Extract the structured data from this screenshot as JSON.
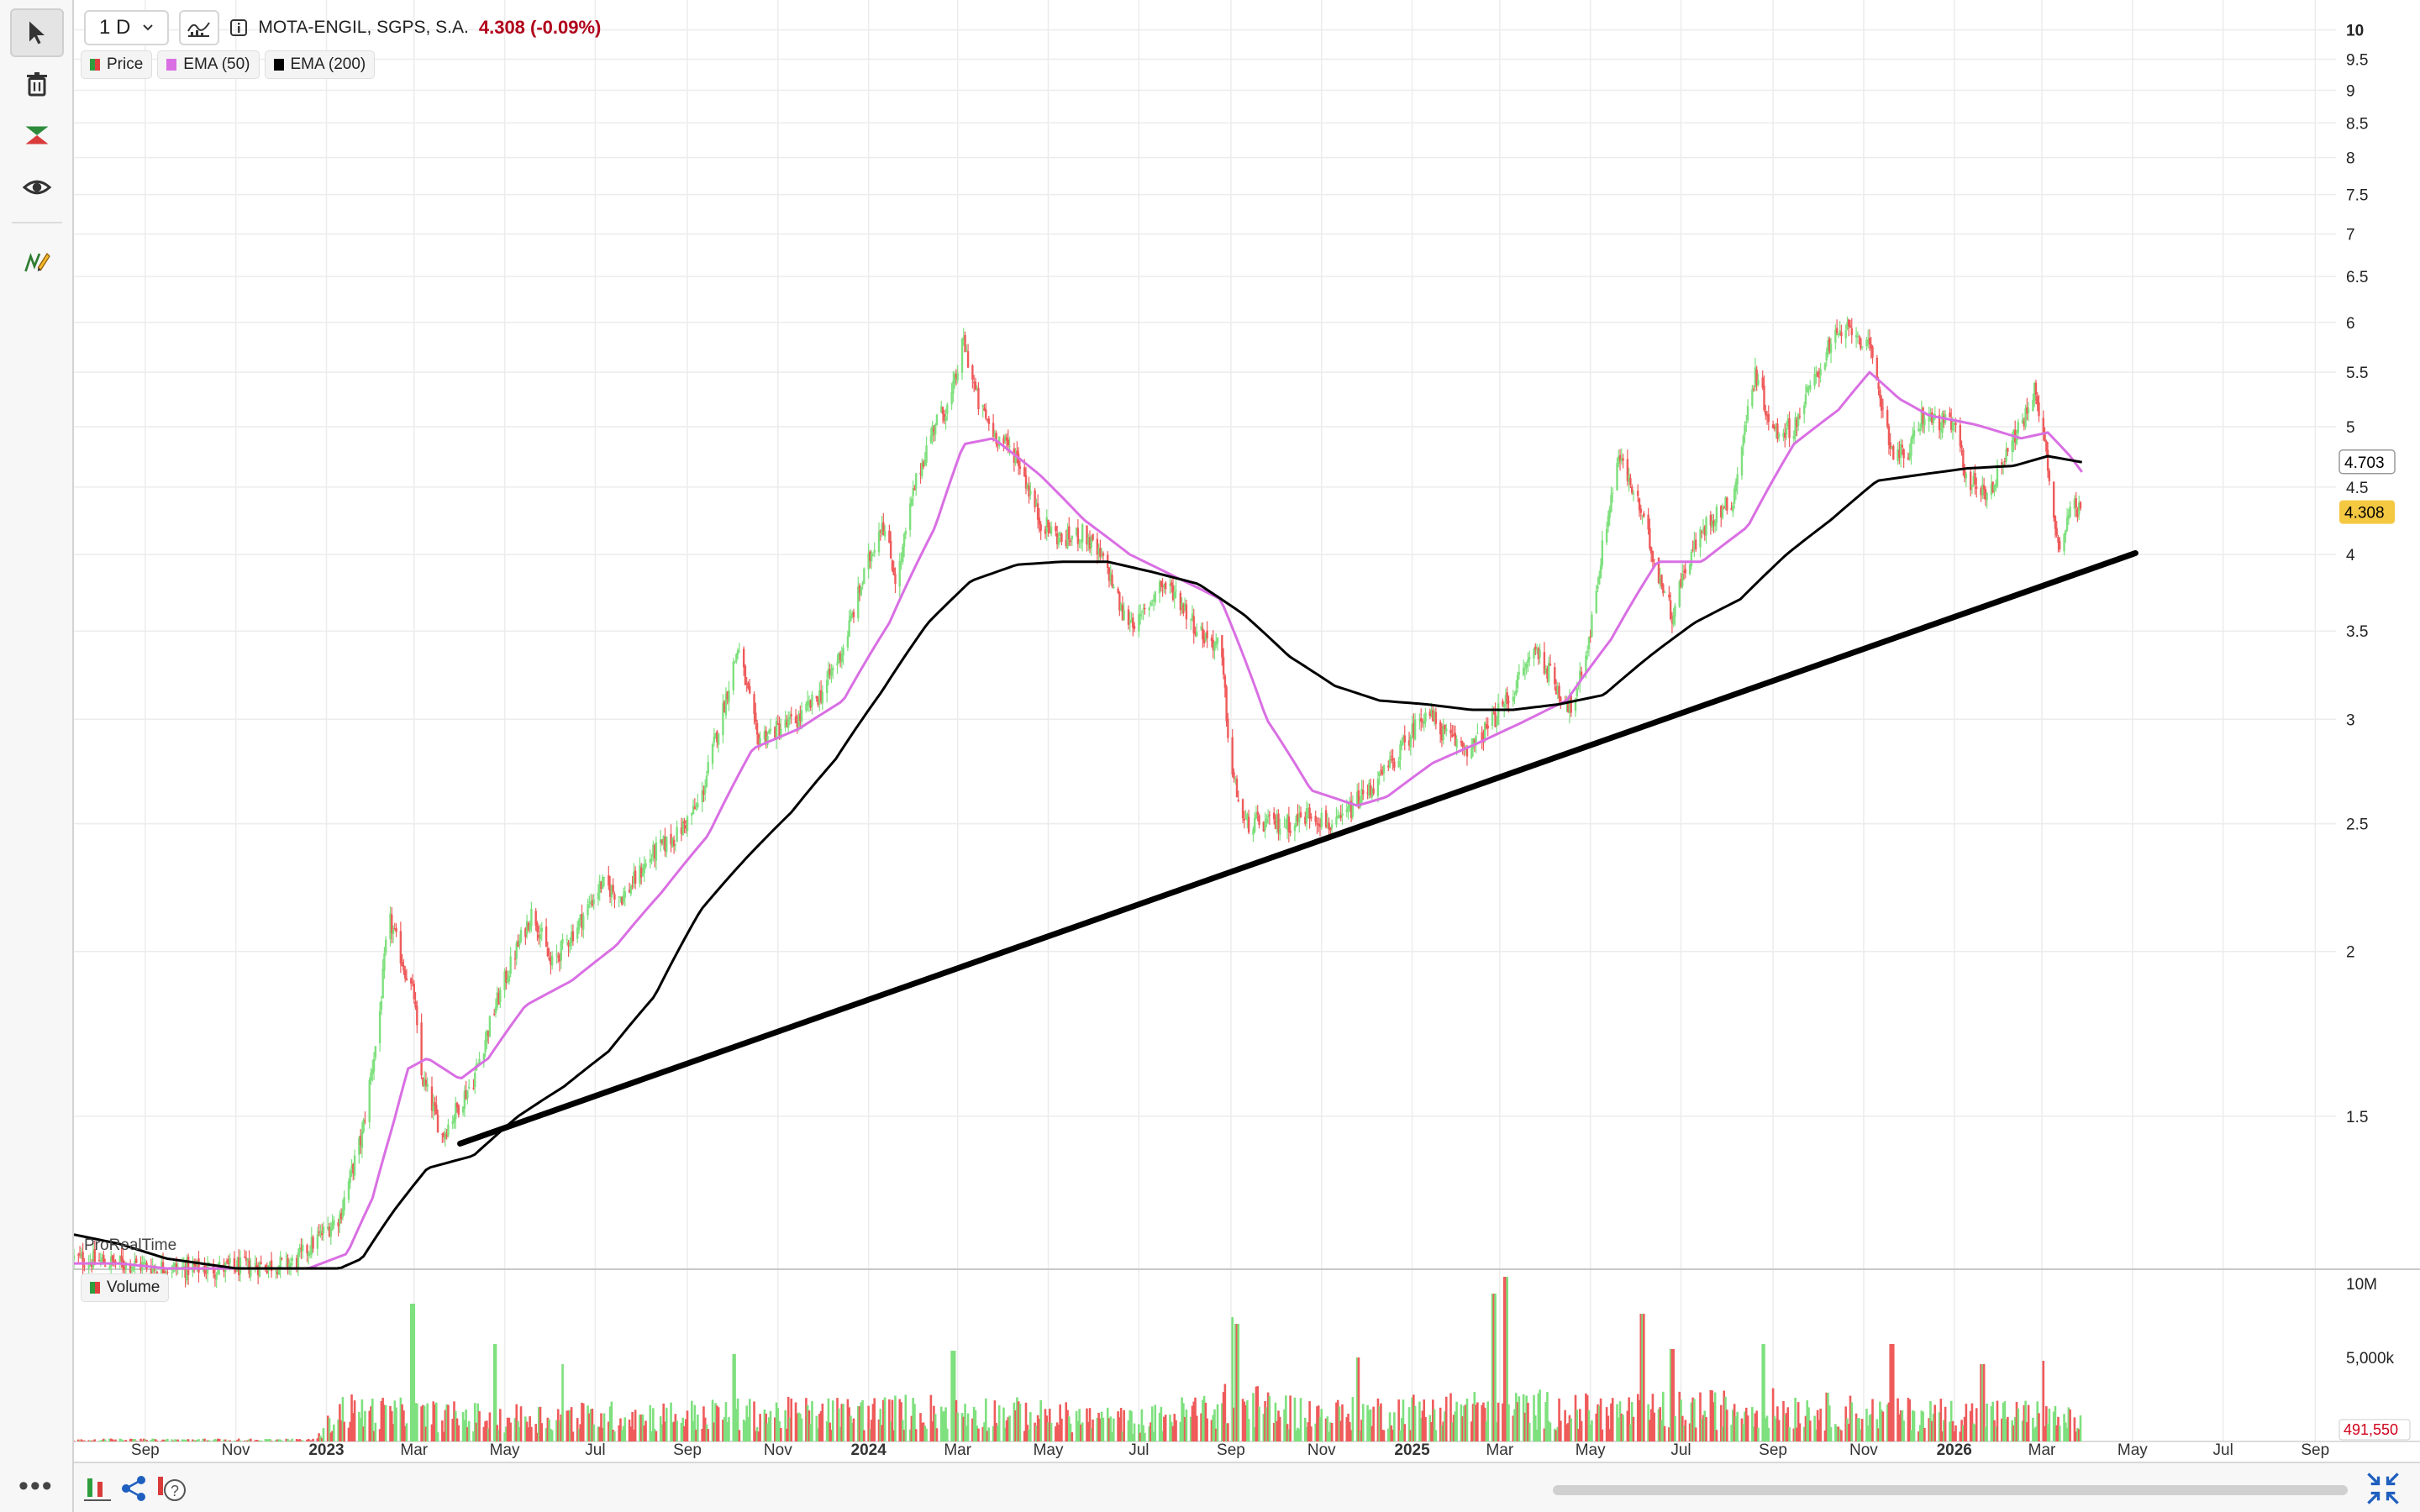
{
  "toolbar": {
    "tools": [
      {
        "name": "cursor-icon",
        "active": true
      },
      {
        "name": "trash-icon",
        "active": false
      },
      {
        "name": "zigzag-pattern-icon",
        "active": false
      },
      {
        "name": "eye-icon",
        "active": false
      },
      {
        "name": "drawing-pencil-icon",
        "active": false
      }
    ],
    "more_label": "•••"
  },
  "header": {
    "interval": "1 D",
    "info_icon": "info-icon",
    "symbol_name": "MOTA-ENGIL, SGPS, S.A.",
    "price_change": "4.308 (-0.09%)",
    "price_change_color": "#b0001a"
  },
  "legend": {
    "price_label": "Price",
    "ema50_label": "EMA (50)",
    "ema200_label": "EMA (200)",
    "volume_label": "Volume"
  },
  "watermark": "ProRealTime",
  "colors": {
    "up": "#7ee07e",
    "down": "#ef5a5a",
    "ema50": "#d96fe3",
    "ema200": "#000000",
    "trendline": "#000000",
    "last_price_badge": "#f5c842",
    "last_volume_text": "#d0021b"
  },
  "chart_data": [
    {
      "type": "line",
      "scale": "log",
      "ylim": [
        1.15,
        10.2
      ],
      "xlim": [
        "2022-07-15",
        "2026-09-15"
      ],
      "y_ticks": [
        1.5,
        2,
        2.5,
        3,
        3.5,
        4,
        4.5,
        5,
        5.5,
        6,
        6.5,
        7,
        7.5,
        8,
        8.5,
        9,
        9.5,
        10
      ],
      "y_tick_labels": [
        "1.5",
        "2",
        "2.5",
        "3",
        "3.5",
        "4",
        "4.5",
        "5",
        "5.5",
        "6",
        "6.5",
        "7",
        "7.5",
        "8",
        "8.5",
        "9",
        "9.5",
        "10"
      ],
      "x_ticks": [
        {
          "label": "Sep",
          "date": "2022-09-01"
        },
        {
          "label": "Nov",
          "date": "2022-11-01"
        },
        {
          "label": "2023",
          "date": "2023-01-01",
          "bold": true
        },
        {
          "label": "Mar",
          "date": "2023-03-01"
        },
        {
          "label": "May",
          "date": "2023-05-01"
        },
        {
          "label": "Jul",
          "date": "2023-07-01"
        },
        {
          "label": "Sep",
          "date": "2023-09-01"
        },
        {
          "label": "Nov",
          "date": "2023-11-01"
        },
        {
          "label": "2024",
          "date": "2024-01-01",
          "bold": true
        },
        {
          "label": "Mar",
          "date": "2024-03-01"
        },
        {
          "label": "May",
          "date": "2024-05-01"
        },
        {
          "label": "Jul",
          "date": "2024-07-01"
        },
        {
          "label": "Sep",
          "date": "2024-09-01"
        },
        {
          "label": "Nov",
          "date": "2024-11-01"
        },
        {
          "label": "2025",
          "date": "2025-01-01",
          "bold": true
        },
        {
          "label": "Mar",
          "date": "2025-03-01"
        },
        {
          "label": "May",
          "date": "2025-05-01"
        },
        {
          "label": "Jul",
          "date": "2025-07-01"
        },
        {
          "label": "Sep",
          "date": "2025-09-01"
        },
        {
          "label": "Nov",
          "date": "2025-11-01"
        },
        {
          "label": "2026",
          "date": "2026-01-01",
          "bold": true
        },
        {
          "label": "Mar",
          "date": "2026-03-01"
        },
        {
          "label": "May",
          "date": "2026-05-01"
        },
        {
          "label": "Jul",
          "date": "2026-07-01"
        },
        {
          "label": "Sep",
          "date": "2026-09-01"
        }
      ],
      "price_path": [
        [
          "2022-07-15",
          1.17
        ],
        [
          "2022-08-15",
          1.16
        ],
        [
          "2022-09-20",
          1.15
        ],
        [
          "2022-10-20",
          1.15
        ],
        [
          "2022-12-10",
          1.16
        ],
        [
          "2023-01-10",
          1.26
        ],
        [
          "2023-01-25",
          1.45
        ],
        [
          "2023-02-05",
          1.75
        ],
        [
          "2023-02-12",
          2.12
        ],
        [
          "2023-02-22",
          1.95
        ],
        [
          "2023-03-01",
          1.85
        ],
        [
          "2023-03-05",
          1.62
        ],
        [
          "2023-03-20",
          1.45
        ],
        [
          "2023-04-10",
          1.6
        ],
        [
          "2023-04-25",
          1.82
        ],
        [
          "2023-05-10",
          2.02
        ],
        [
          "2023-05-20",
          2.15
        ],
        [
          "2023-06-01",
          1.95
        ],
        [
          "2023-06-20",
          2.1
        ],
        [
          "2023-07-05",
          2.25
        ],
        [
          "2023-07-20",
          2.2
        ],
        [
          "2023-08-10",
          2.38
        ],
        [
          "2023-08-25",
          2.45
        ],
        [
          "2023-09-10",
          2.6
        ],
        [
          "2023-09-25",
          3.05
        ],
        [
          "2023-10-05",
          3.4
        ],
        [
          "2023-10-18",
          2.9
        ],
        [
          "2023-11-01",
          2.95
        ],
        [
          "2023-11-15",
          3.0
        ],
        [
          "2023-12-01",
          3.15
        ],
        [
          "2023-12-15",
          3.4
        ],
        [
          "2024-01-01",
          3.95
        ],
        [
          "2024-01-10",
          4.25
        ],
        [
          "2024-01-20",
          3.8
        ],
        [
          "2024-02-01",
          4.5
        ],
        [
          "2024-02-15",
          5.05
        ],
        [
          "2024-02-25",
          5.2
        ],
        [
          "2024-03-05",
          5.8
        ],
        [
          "2024-03-15",
          5.2
        ],
        [
          "2024-03-25",
          4.95
        ],
        [
          "2024-04-10",
          4.75
        ],
        [
          "2024-04-25",
          4.25
        ],
        [
          "2024-05-10",
          4.1
        ],
        [
          "2024-05-25",
          4.15
        ],
        [
          "2024-06-10",
          3.9
        ],
        [
          "2024-06-20",
          3.6
        ],
        [
          "2024-07-01",
          3.55
        ],
        [
          "2024-07-15",
          3.8
        ],
        [
          "2024-07-25",
          3.75
        ],
        [
          "2024-08-10",
          3.5
        ],
        [
          "2024-08-25",
          3.4
        ],
        [
          "2024-09-01",
          2.75
        ],
        [
          "2024-09-10",
          2.5
        ],
        [
          "2024-09-25",
          2.5
        ],
        [
          "2024-10-10",
          2.5
        ],
        [
          "2024-10-25",
          2.55
        ],
        [
          "2024-11-10",
          2.48
        ],
        [
          "2024-11-25",
          2.6
        ],
        [
          "2024-12-10",
          2.7
        ],
        [
          "2024-12-25",
          2.85
        ],
        [
          "2025-01-10",
          3.05
        ],
        [
          "2025-01-25",
          2.9
        ],
        [
          "2025-02-10",
          2.85
        ],
        [
          "2025-02-25",
          3.0
        ],
        [
          "2025-03-10",
          3.15
        ],
        [
          "2025-03-25",
          3.4
        ],
        [
          "2025-04-10",
          3.15
        ],
        [
          "2025-04-20",
          3.05
        ],
        [
          "2025-05-01",
          3.5
        ],
        [
          "2025-05-10",
          4.1
        ],
        [
          "2025-05-20",
          4.75
        ],
        [
          "2025-06-01",
          4.4
        ],
        [
          "2025-06-15",
          3.9
        ],
        [
          "2025-06-25",
          3.6
        ],
        [
          "2025-07-05",
          3.95
        ],
        [
          "2025-07-20",
          4.25
        ],
        [
          "2025-08-05",
          4.4
        ],
        [
          "2025-08-20",
          5.5
        ],
        [
          "2025-09-01",
          4.95
        ],
        [
          "2025-09-15",
          5.0
        ],
        [
          "2025-10-01",
          5.5
        ],
        [
          "2025-10-10",
          5.8
        ],
        [
          "2025-10-25",
          5.95
        ],
        [
          "2025-11-05",
          5.7
        ],
        [
          "2025-11-20",
          4.8
        ],
        [
          "2025-12-01",
          4.75
        ],
        [
          "2025-12-10",
          5.1
        ],
        [
          "2025-12-20",
          5.05
        ],
        [
          "2026-01-01",
          5.0
        ],
        [
          "2026-01-10",
          4.55
        ],
        [
          "2026-01-25",
          4.45
        ],
        [
          "2026-02-05",
          4.8
        ],
        [
          "2026-02-15",
          5.0
        ],
        [
          "2026-02-25",
          5.35
        ],
        [
          "2026-03-05",
          4.65
        ],
        [
          "2026-03-12",
          4.05
        ],
        [
          "2026-03-20",
          4.35
        ],
        [
          "2026-03-28",
          4.31
        ]
      ],
      "ema50": [
        [
          "2022-07-15",
          1.16
        ],
        [
          "2022-08-15",
          1.16
        ],
        [
          "2022-09-15",
          1.15
        ],
        [
          "2022-11-01",
          1.15
        ],
        [
          "2022-12-20",
          1.15
        ],
        [
          "2023-01-15",
          1.18
        ],
        [
          "2023-02-01",
          1.3
        ],
        [
          "2023-02-15",
          1.48
        ],
        [
          "2023-02-25",
          1.63
        ],
        [
          "2023-03-10",
          1.66
        ],
        [
          "2023-04-01",
          1.6
        ],
        [
          "2023-04-20",
          1.66
        ],
        [
          "2023-05-15",
          1.82
        ],
        [
          "2023-06-15",
          1.9
        ],
        [
          "2023-07-15",
          2.02
        ],
        [
          "2023-08-15",
          2.22
        ],
        [
          "2023-09-15",
          2.45
        ],
        [
          "2023-10-15",
          2.85
        ],
        [
          "2023-11-15",
          2.95
        ],
        [
          "2023-12-15",
          3.1
        ],
        [
          "2024-01-15",
          3.55
        ],
        [
          "2024-02-15",
          4.2
        ],
        [
          "2024-03-05",
          4.85
        ],
        [
          "2024-03-25",
          4.9
        ],
        [
          "2024-04-25",
          4.6
        ],
        [
          "2024-05-25",
          4.25
        ],
        [
          "2024-06-25",
          4.0
        ],
        [
          "2024-07-25",
          3.85
        ],
        [
          "2024-08-25",
          3.7
        ],
        [
          "2024-09-25",
          3.0
        ],
        [
          "2024-10-25",
          2.65
        ],
        [
          "2024-11-25",
          2.58
        ],
        [
          "2024-12-15",
          2.62
        ],
        [
          "2025-01-15",
          2.78
        ],
        [
          "2025-02-15",
          2.88
        ],
        [
          "2025-03-15",
          2.98
        ],
        [
          "2025-04-15",
          3.1
        ],
        [
          "2025-05-15",
          3.45
        ],
        [
          "2025-06-15",
          3.95
        ],
        [
          "2025-07-15",
          3.95
        ],
        [
          "2025-08-15",
          4.2
        ],
        [
          "2025-09-15",
          4.85
        ],
        [
          "2025-10-15",
          5.15
        ],
        [
          "2025-11-05",
          5.5
        ],
        [
          "2025-11-25",
          5.25
        ],
        [
          "2025-12-15",
          5.1
        ],
        [
          "2026-01-15",
          5.02
        ],
        [
          "2026-02-15",
          4.9
        ],
        [
          "2026-03-05",
          4.95
        ],
        [
          "2026-03-20",
          4.75
        ],
        [
          "2026-03-28",
          4.62
        ]
      ],
      "ema200": [
        [
          "2022-07-15",
          1.22
        ],
        [
          "2022-08-15",
          1.2
        ],
        [
          "2022-09-15",
          1.17
        ],
        [
          "2022-11-01",
          1.15
        ],
        [
          "2022-12-20",
          1.15
        ],
        [
          "2023-01-10",
          1.15
        ],
        [
          "2023-01-25",
          1.17
        ],
        [
          "2023-02-15",
          1.27
        ],
        [
          "2023-03-10",
          1.37
        ],
        [
          "2023-04-10",
          1.4
        ],
        [
          "2023-05-10",
          1.5
        ],
        [
          "2023-06-10",
          1.58
        ],
        [
          "2023-07-10",
          1.68
        ],
        [
          "2023-08-10",
          1.85
        ],
        [
          "2023-09-10",
          2.15
        ],
        [
          "2023-10-10",
          2.35
        ],
        [
          "2023-11-10",
          2.55
        ],
        [
          "2023-12-10",
          2.8
        ],
        [
          "2024-01-10",
          3.15
        ],
        [
          "2024-02-10",
          3.55
        ],
        [
          "2024-03-10",
          3.82
        ],
        [
          "2024-04-10",
          3.93
        ],
        [
          "2024-05-10",
          3.95
        ],
        [
          "2024-06-10",
          3.95
        ],
        [
          "2024-07-10",
          3.88
        ],
        [
          "2024-08-10",
          3.8
        ],
        [
          "2024-09-10",
          3.6
        ],
        [
          "2024-10-10",
          3.35
        ],
        [
          "2024-11-10",
          3.18
        ],
        [
          "2024-12-10",
          3.1
        ],
        [
          "2025-01-10",
          3.08
        ],
        [
          "2025-02-10",
          3.05
        ],
        [
          "2025-03-10",
          3.05
        ],
        [
          "2025-04-10",
          3.08
        ],
        [
          "2025-05-10",
          3.13
        ],
        [
          "2025-06-10",
          3.35
        ],
        [
          "2025-07-10",
          3.55
        ],
        [
          "2025-08-10",
          3.7
        ],
        [
          "2025-09-10",
          4.0
        ],
        [
          "2025-10-10",
          4.25
        ],
        [
          "2025-11-10",
          4.55
        ],
        [
          "2025-12-10",
          4.6
        ],
        [
          "2026-01-10",
          4.65
        ],
        [
          "2026-02-10",
          4.67
        ],
        [
          "2026-03-05",
          4.75
        ],
        [
          "2026-03-28",
          4.7
        ]
      ],
      "trendline": [
        [
          "2023-04-01",
          1.43
        ],
        [
          "2026-05-03",
          4.01
        ]
      ],
      "last_values": {
        "ema200": "4.703",
        "price": "4.308"
      }
    },
    {
      "type": "bar",
      "name": "Volume",
      "ylim": [
        0,
        10000000
      ],
      "y_tick_labels": [
        "5,000k",
        "10M"
      ],
      "last_value": "491,550",
      "volume_envelope": [
        [
          "2022-07-15",
          0.15
        ],
        [
          "2022-12-25",
          0.15
        ],
        [
          "2023-01-10",
          2.6
        ],
        [
          "2023-03-01",
          2.2
        ],
        [
          "2023-05-01",
          2.0
        ],
        [
          "2023-09-01",
          2.2
        ],
        [
          "2024-01-01",
          2.4
        ],
        [
          "2024-03-01",
          2.6
        ],
        [
          "2024-07-01",
          1.7
        ],
        [
          "2024-09-05",
          3.2
        ],
        [
          "2024-11-01",
          2.2
        ],
        [
          "2025-03-01",
          2.9
        ],
        [
          "2025-05-01",
          2.5
        ],
        [
          "2025-09-01",
          2.8
        ],
        [
          "2025-11-01",
          2.4
        ],
        [
          "2026-03-01",
          2.2
        ],
        [
          "2026-03-28",
          1.6
        ]
      ],
      "volume_spikes": [
        [
          "2023-02-28",
          8.2
        ],
        [
          "2023-04-24",
          5.8
        ],
        [
          "2023-06-10",
          4.6
        ],
        [
          "2023-10-02",
          5.2
        ],
        [
          "2024-02-27",
          5.4
        ],
        [
          "2024-09-01",
          7.4
        ],
        [
          "2024-09-05",
          7.0
        ],
        [
          "2024-11-25",
          5.0
        ],
        [
          "2025-03-05",
          9.8
        ],
        [
          "2025-02-25",
          8.8
        ],
        [
          "2025-06-05",
          7.6
        ],
        [
          "2025-06-25",
          5.5
        ],
        [
          "2025-08-25",
          5.8
        ],
        [
          "2025-11-20",
          5.8
        ],
        [
          "2026-01-20",
          4.6
        ],
        [
          "2026-03-01",
          4.8
        ]
      ]
    }
  ]
}
